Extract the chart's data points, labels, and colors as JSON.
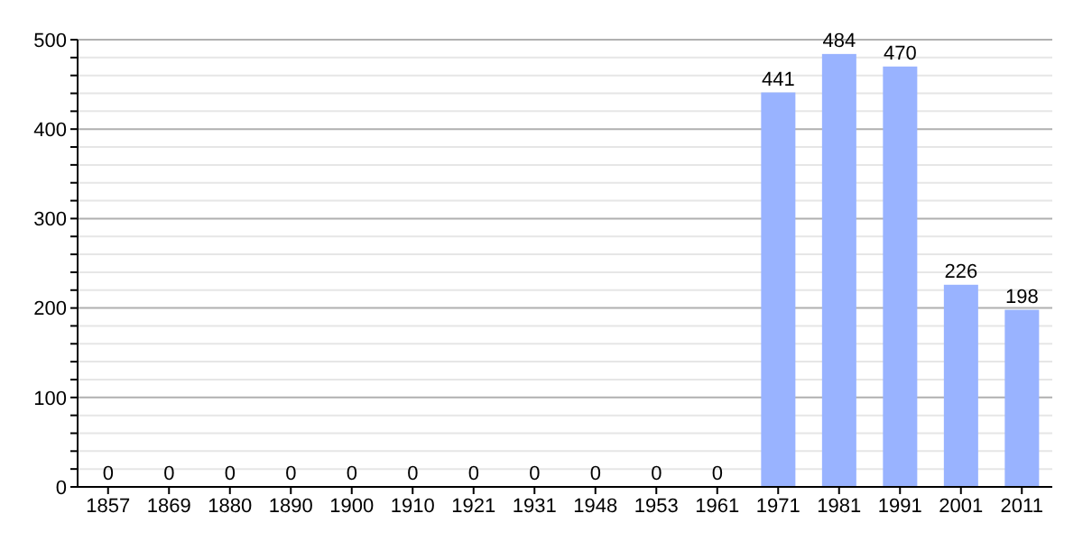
{
  "chart_data": {
    "type": "bar",
    "categories": [
      "1857",
      "1869",
      "1880",
      "1890",
      "1900",
      "1910",
      "1921",
      "1931",
      "1948",
      "1953",
      "1961",
      "1971",
      "1981",
      "1991",
      "2001",
      "2011"
    ],
    "values": [
      0,
      0,
      0,
      0,
      0,
      0,
      0,
      0,
      0,
      0,
      0,
      441,
      484,
      470,
      226,
      198
    ],
    "color": "#99b3ff",
    "data_labels": true,
    "grid": "y",
    "ylim": [
      0,
      500
    ],
    "yticks": [
      0,
      {
        "value": 20,
        "label": null
      },
      {
        "value": 40,
        "label": null
      },
      {
        "value": 60,
        "label": null
      },
      {
        "value": 80,
        "label": null
      },
      100,
      {
        "value": 120,
        "label": null
      },
      {
        "value": 140,
        "label": null
      },
      {
        "value": 160,
        "label": null
      },
      {
        "value": 180,
        "label": null
      },
      200,
      {
        "value": 220,
        "label": null
      },
      {
        "value": 240,
        "label": null
      },
      {
        "value": 260,
        "label": null
      },
      {
        "value": 280,
        "label": null
      },
      300,
      {
        "value": 320,
        "label": null
      },
      {
        "value": 340,
        "label": null
      },
      {
        "value": 360,
        "label": null
      },
      {
        "value": 380,
        "label": null
      },
      400,
      {
        "value": 420,
        "label": null
      },
      {
        "value": 440,
        "label": null
      },
      {
        "value": 460,
        "label": null
      },
      {
        "value": 480,
        "label": null
      },
      500
    ]
  }
}
